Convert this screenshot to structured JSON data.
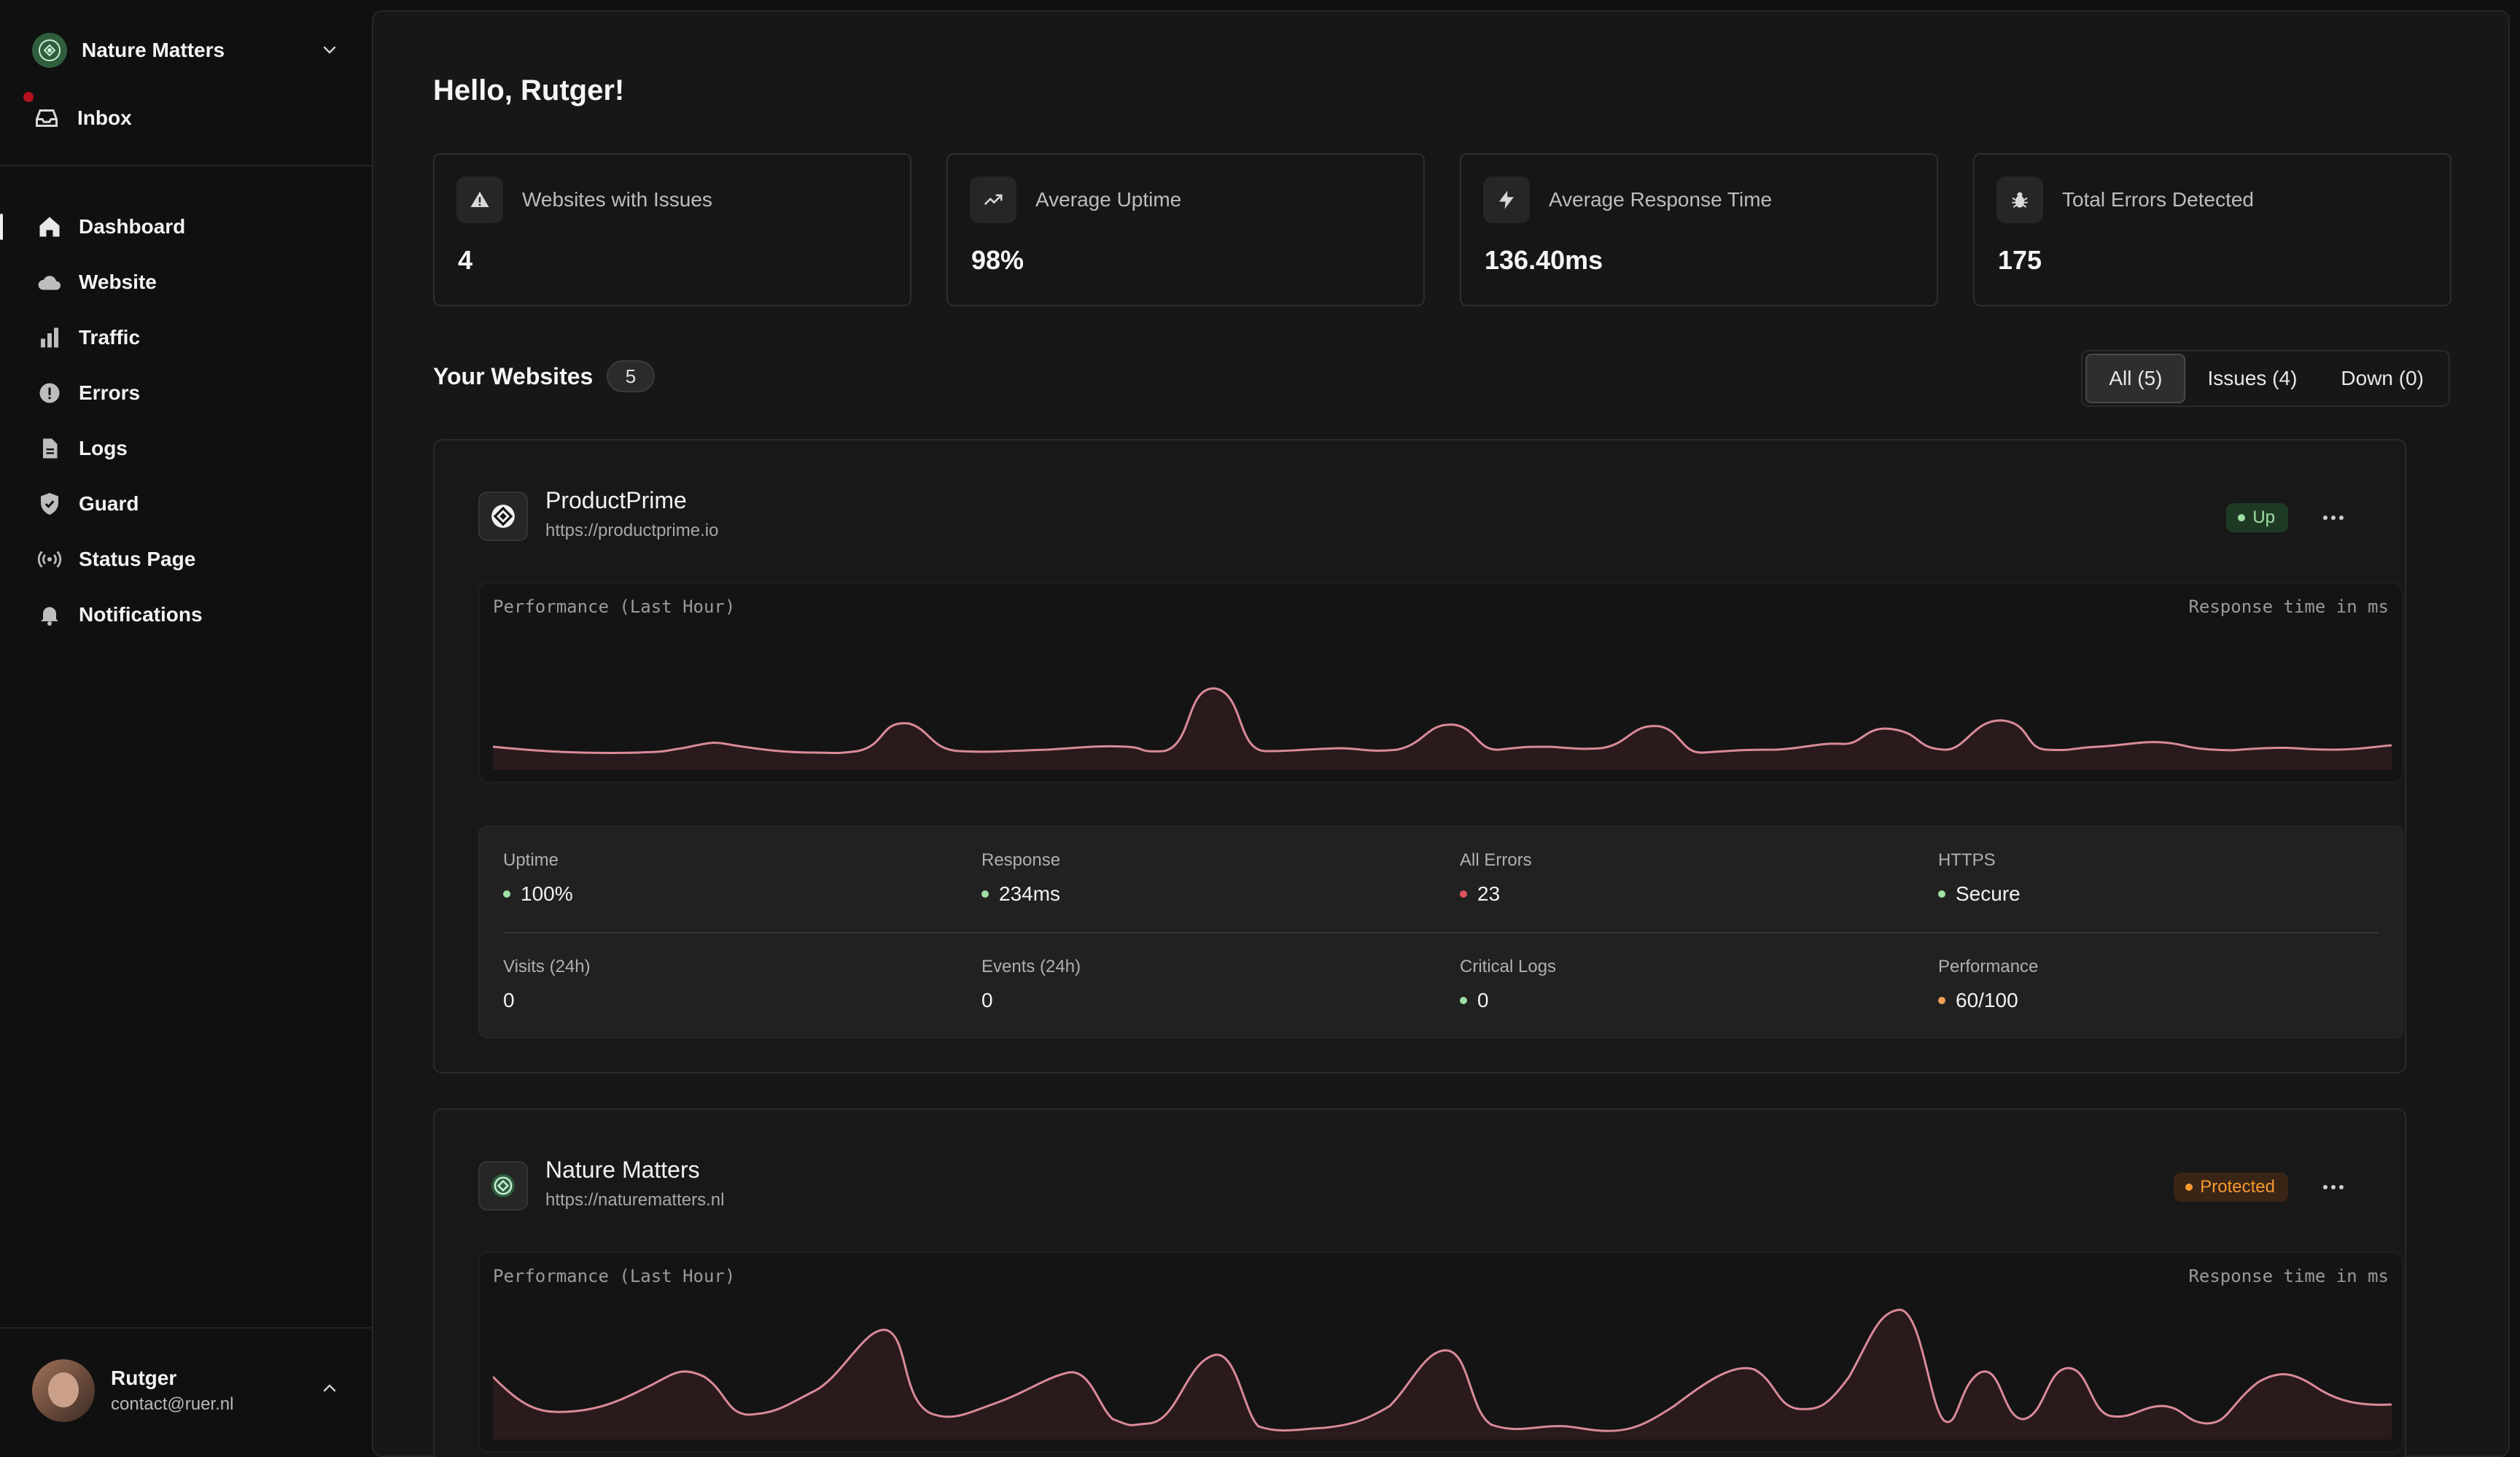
{
  "sidebar": {
    "org_name": "Nature Matters",
    "inbox_label": "Inbox",
    "nav": [
      {
        "label": "Dashboard",
        "icon": "home-icon"
      },
      {
        "label": "Website",
        "icon": "cloud-icon"
      },
      {
        "label": "Traffic",
        "icon": "bar-chart-icon"
      },
      {
        "label": "Errors",
        "icon": "alert-circle-icon"
      },
      {
        "label": "Logs",
        "icon": "document-icon"
      },
      {
        "label": "Guard",
        "icon": "shield-check-icon"
      },
      {
        "label": "Status Page",
        "icon": "broadcast-icon"
      },
      {
        "label": "Notifications",
        "icon": "bell-icon"
      }
    ],
    "active_nav": "Dashboard",
    "user": {
      "name": "Rutger",
      "email": "contact@ruer.nl"
    }
  },
  "main": {
    "greeting": "Hello, Rutger!",
    "stats": [
      {
        "label": "Websites with Issues",
        "value": "4",
        "icon": "warning-triangle-icon"
      },
      {
        "label": "Average Uptime",
        "value": "98%",
        "icon": "trending-up-icon"
      },
      {
        "label": "Average Response Time",
        "value": "136.40ms",
        "icon": "lightning-icon"
      },
      {
        "label": "Total Errors Detected",
        "value": "175",
        "icon": "bug-icon"
      }
    ],
    "section_title": "Your Websites",
    "site_count": "5",
    "filters": [
      {
        "label": "All (5)",
        "active": true
      },
      {
        "label": "Issues (4)",
        "active": false
      },
      {
        "label": "Down (0)",
        "active": false
      }
    ],
    "sites": [
      {
        "name": "ProductPrime",
        "url": "https://productprime.io",
        "status": "Up",
        "chart_title": "Performance (Last Hour)",
        "chart_unit": "Response time in ms",
        "metrics_row1": [
          {
            "label": "Uptime",
            "value": "100%",
            "dot": "#9fe0a5"
          },
          {
            "label": "Response",
            "value": "234ms",
            "dot": "#9fe0a5"
          },
          {
            "label": "All Errors",
            "value": "23",
            "dot": "#e0535d"
          },
          {
            "label": "HTTPS",
            "value": "Secure",
            "dot": "#9fe0a5"
          }
        ],
        "metrics_row2": [
          {
            "label": "Visits (24h)",
            "value": "0",
            "dot": ""
          },
          {
            "label": "Events (24h)",
            "value": "0",
            "dot": ""
          },
          {
            "label": "Critical Logs",
            "value": "0",
            "dot": "#9fe0a5"
          },
          {
            "label": "Performance",
            "value": "60/100",
            "dot": "#f0a25a"
          }
        ]
      },
      {
        "name": "Nature Matters",
        "url": "https://naturematters.nl",
        "status": "Protected",
        "chart_title": "Performance (Last Hour)",
        "chart_unit": "Response time in ms"
      }
    ]
  },
  "colors": {
    "background": "#101010",
    "panel": "#171717",
    "chart_line": "#d98b97",
    "chart_fill": "#2a1a1c",
    "status_up": "#9fe0a5",
    "status_protected": "#f59b2e",
    "error_red": "#e0535d"
  }
}
